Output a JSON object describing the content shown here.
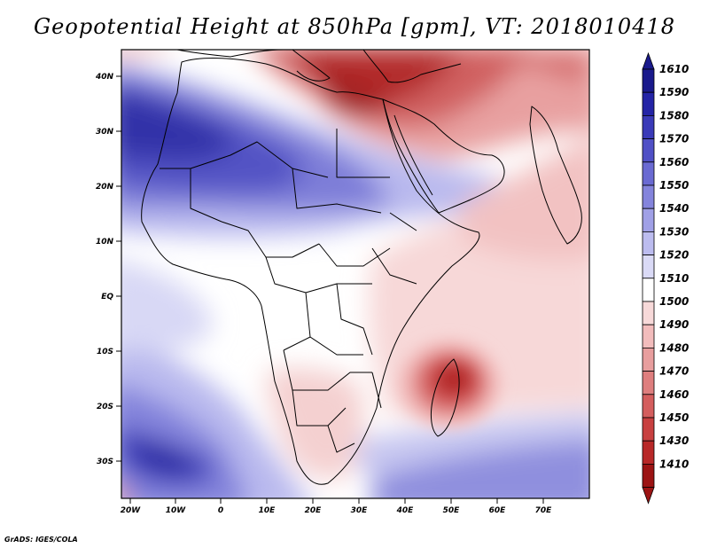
{
  "title": "Geopotential Height at 850hPa [gpm], VT: 2018010418",
  "credit": "GrADS: IGES/COLA",
  "map": {
    "lat_labels": [
      "40N",
      "30N",
      "20N",
      "10N",
      "EQ",
      "10S",
      "20S",
      "30S"
    ],
    "lon_labels": [
      "20W",
      "10W",
      "0",
      "10E",
      "20E",
      "30E",
      "40E",
      "50E",
      "60E",
      "70E"
    ]
  },
  "colorbar": {
    "levels": [
      "1610",
      "1590",
      "1580",
      "1570",
      "1560",
      "1550",
      "1540",
      "1530",
      "1520",
      "1510",
      "1500",
      "1490",
      "1480",
      "1470",
      "1460",
      "1450",
      "1430",
      "1410"
    ],
    "colors": [
      "#1a1a8c",
      "#2424a6",
      "#3a3ab8",
      "#5050c6",
      "#6a6ad2",
      "#8484dc",
      "#a0a0e6",
      "#bcbcef",
      "#dadaf6",
      "#ffffff",
      "#f7d9d9",
      "#f2bcbc",
      "#e89e9e",
      "#de7e7e",
      "#d45e5e",
      "#c84040",
      "#b82828",
      "#9c1414"
    ]
  }
}
